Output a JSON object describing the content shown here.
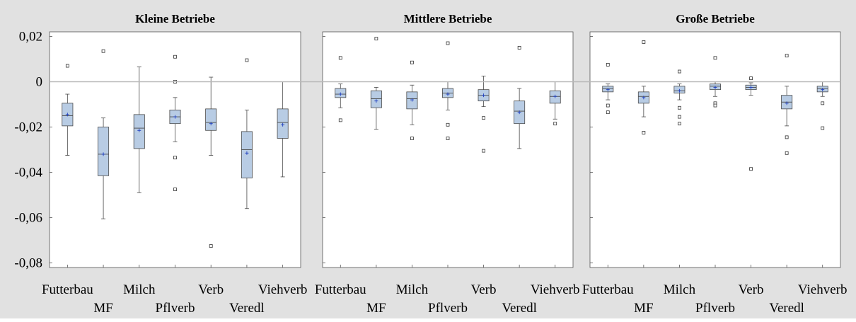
{
  "colors": {
    "background": "#e1e1e1",
    "plot_background": "#ffffff",
    "box_fill": "#b8cce4",
    "box_stroke": "#4a4a4a",
    "mean_marker": "#1f3fbf",
    "reference_line": "#b9b9b9"
  },
  "chart_data": {
    "type": "boxplot",
    "reference_line": 0,
    "ylim": [
      -0.082,
      0.022
    ],
    "yticks": [
      {
        "value": 0.02,
        "label": "0,02"
      },
      {
        "value": 0,
        "label": "0"
      },
      {
        "value": -0.02,
        "label": "-0,02"
      },
      {
        "value": -0.04,
        "label": "-0,04"
      },
      {
        "value": -0.06,
        "label": "-0,06"
      },
      {
        "value": -0.08,
        "label": "-0,08"
      }
    ],
    "categories": [
      "Futterbau",
      "MF",
      "Milch",
      "Pflverb",
      "Verb",
      "Veredl",
      "Viehverb"
    ],
    "panels": [
      {
        "title": "Kleine Betriebe",
        "boxes": [
          {
            "category": "Futterbau",
            "q1": -0.0195,
            "median": -0.015,
            "q3": -0.0095,
            "whisker_low": -0.0325,
            "whisker_high": -0.0055,
            "mean": -0.0145,
            "outliers": [
              0.007
            ]
          },
          {
            "category": "MF",
            "q1": -0.0415,
            "median": -0.032,
            "q3": -0.02,
            "whisker_low": -0.0605,
            "whisker_high": -0.016,
            "mean": -0.032,
            "outliers": [
              0.0135
            ]
          },
          {
            "category": "Milch",
            "q1": -0.0295,
            "median": -0.0205,
            "q3": -0.0145,
            "whisker_low": -0.049,
            "whisker_high": 0.0065,
            "mean": -0.0215,
            "outliers": []
          },
          {
            "category": "Pflverb",
            "q1": -0.0185,
            "median": -0.0155,
            "q3": -0.0125,
            "whisker_low": -0.0265,
            "whisker_high": -0.007,
            "mean": -0.0155,
            "outliers": [
              0.011,
              0.0,
              -0.0335,
              -0.0475
            ]
          },
          {
            "category": "Verb",
            "q1": -0.0215,
            "median": -0.018,
            "q3": -0.012,
            "whisker_low": -0.0325,
            "whisker_high": 0.002,
            "mean": -0.0185,
            "outliers": [
              -0.0725
            ]
          },
          {
            "category": "Veredl",
            "q1": -0.0425,
            "median": -0.03,
            "q3": -0.022,
            "whisker_low": -0.056,
            "whisker_high": -0.0125,
            "mean": -0.0315,
            "outliers": [
              0.0095
            ]
          },
          {
            "category": "Viehverb",
            "q1": -0.025,
            "median": -0.018,
            "q3": -0.012,
            "whisker_low": -0.042,
            "whisker_high": 0.0,
            "mean": -0.019,
            "outliers": []
          }
        ]
      },
      {
        "title": "Mittlere Betriebe",
        "boxes": [
          {
            "category": "Futterbau",
            "q1": -0.007,
            "median": -0.0055,
            "q3": -0.003,
            "whisker_low": -0.0115,
            "whisker_high": -0.001,
            "mean": -0.0055,
            "outliers": [
              0.0105,
              -0.017
            ]
          },
          {
            "category": "MF",
            "q1": -0.0115,
            "median": -0.0075,
            "q3": -0.004,
            "whisker_low": -0.021,
            "whisker_high": -0.0025,
            "mean": -0.0085,
            "outliers": [
              0.019
            ]
          },
          {
            "category": "Milch",
            "q1": -0.012,
            "median": -0.0075,
            "q3": -0.0045,
            "whisker_low": -0.019,
            "whisker_high": -0.0015,
            "mean": -0.008,
            "outliers": [
              0.0085,
              -0.025
            ]
          },
          {
            "category": "Pflverb",
            "q1": -0.007,
            "median": -0.005,
            "q3": -0.003,
            "whisker_low": -0.0125,
            "whisker_high": 0.0,
            "mean": -0.0055,
            "outliers": [
              0.017,
              -0.019,
              -0.025
            ]
          },
          {
            "category": "Verb",
            "q1": -0.0085,
            "median": -0.006,
            "q3": -0.0035,
            "whisker_low": -0.011,
            "whisker_high": 0.0025,
            "mean": -0.006,
            "outliers": [
              -0.016,
              -0.0305
            ]
          },
          {
            "category": "Veredl",
            "q1": -0.0185,
            "median": -0.013,
            "q3": -0.0085,
            "whisker_low": -0.0295,
            "whisker_high": -0.003,
            "mean": -0.0135,
            "outliers": [
              0.015
            ]
          },
          {
            "category": "Viehverb",
            "q1": -0.0095,
            "median": -0.0065,
            "q3": -0.004,
            "whisker_low": -0.0165,
            "whisker_high": 0.0,
            "mean": -0.0065,
            "outliers": [
              -0.0185
            ]
          }
        ]
      },
      {
        "title": "Große Betriebe",
        "boxes": [
          {
            "category": "Futterbau",
            "q1": -0.0045,
            "median": -0.003,
            "q3": -0.002,
            "whisker_low": -0.008,
            "whisker_high": -0.001,
            "mean": -0.0035,
            "outliers": [
              0.0075,
              -0.0105,
              -0.0135
            ]
          },
          {
            "category": "MF",
            "q1": -0.0095,
            "median": -0.0065,
            "q3": -0.0045,
            "whisker_low": -0.0155,
            "whisker_high": -0.002,
            "mean": -0.007,
            "outliers": [
              0.0175,
              -0.0225
            ]
          },
          {
            "category": "Milch",
            "q1": -0.005,
            "median": -0.004,
            "q3": -0.002,
            "whisker_low": -0.008,
            "whisker_high": -0.001,
            "mean": -0.004,
            "outliers": [
              0.0045,
              -0.0115,
              -0.0155,
              -0.0185
            ]
          },
          {
            "category": "Pflverb",
            "q1": -0.0035,
            "median": -0.002,
            "q3": -0.001,
            "whisker_low": -0.0065,
            "whisker_high": 0.0,
            "mean": -0.0025,
            "outliers": [
              0.0105,
              -0.0095,
              -0.0105
            ]
          },
          {
            "category": "Verb",
            "q1": -0.0035,
            "median": -0.0025,
            "q3": -0.0015,
            "whisker_low": -0.006,
            "whisker_high": -0.0005,
            "mean": -0.0025,
            "outliers": [
              0.0015,
              -0.0385
            ]
          },
          {
            "category": "Veredl",
            "q1": -0.012,
            "median": -0.009,
            "q3": -0.006,
            "whisker_low": -0.0195,
            "whisker_high": -0.002,
            "mean": -0.0095,
            "outliers": [
              0.0115,
              -0.0245,
              -0.0315
            ]
          },
          {
            "category": "Viehverb",
            "q1": -0.0045,
            "median": -0.003,
            "q3": -0.002,
            "whisker_low": -0.0065,
            "whisker_high": 0.0,
            "mean": -0.0035,
            "outliers": [
              -0.0095,
              -0.0205
            ]
          }
        ]
      }
    ]
  }
}
